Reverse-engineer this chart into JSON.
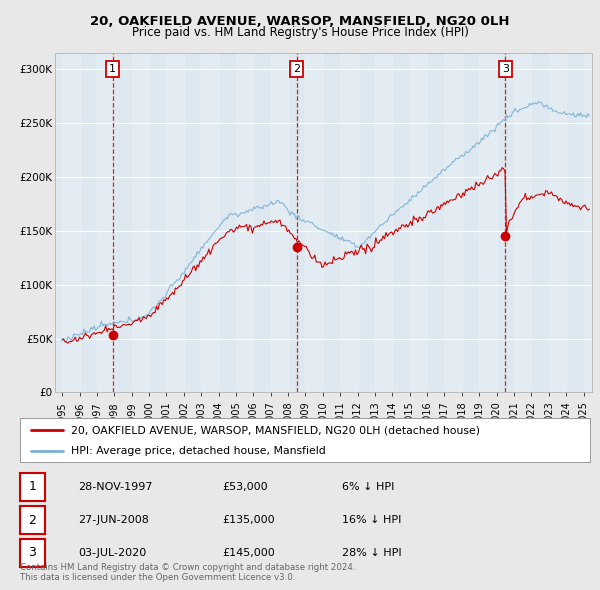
{
  "title1": "20, OAKFIELD AVENUE, WARSOP, MANSFIELD, NG20 0LH",
  "title2": "Price paid vs. HM Land Registry's House Price Index (HPI)",
  "ylabel_ticks": [
    "£0",
    "£50K",
    "£100K",
    "£150K",
    "£200K",
    "£250K",
    "£300K"
  ],
  "ytick_values": [
    0,
    50000,
    100000,
    150000,
    200000,
    250000,
    300000
  ],
  "ylim": [
    0,
    315000
  ],
  "xlim_start": 1994.6,
  "xlim_end": 2025.5,
  "xticks": [
    1995,
    1996,
    1997,
    1998,
    1999,
    2000,
    2001,
    2002,
    2003,
    2004,
    2005,
    2006,
    2007,
    2008,
    2009,
    2010,
    2011,
    2012,
    2013,
    2014,
    2015,
    2016,
    2017,
    2018,
    2019,
    2020,
    2021,
    2022,
    2023,
    2024,
    2025
  ],
  "sales": [
    {
      "year": 1997.91,
      "price": 53000,
      "label": "1"
    },
    {
      "year": 2008.49,
      "price": 135000,
      "label": "2"
    },
    {
      "year": 2020.5,
      "price": 145000,
      "label": "3"
    }
  ],
  "sale_color": "#cc0000",
  "hpi_color": "#7ab0d4",
  "plot_bg_color": "#dde8f0",
  "bg_color": "#e8e8e8",
  "legend_entries": [
    "20, OAKFIELD AVENUE, WARSOP, MANSFIELD, NG20 0LH (detached house)",
    "HPI: Average price, detached house, Mansfield"
  ],
  "table_rows": [
    {
      "num": "1",
      "date": "28-NOV-1997",
      "price": "£53,000",
      "hpi": "6% ↓ HPI"
    },
    {
      "num": "2",
      "date": "27-JUN-2008",
      "price": "£135,000",
      "hpi": "16% ↓ HPI"
    },
    {
      "num": "3",
      "date": "03-JUL-2020",
      "price": "£145,000",
      "hpi": "28% ↓ HPI"
    }
  ],
  "footer": "Contains HM Land Registry data © Crown copyright and database right 2024.\nThis data is licensed under the Open Government Licence v3.0."
}
